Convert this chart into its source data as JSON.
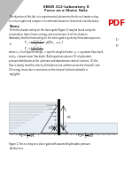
{
  "title_line1": "ENGR 312-Laboratory 8",
  "title_line2": "Force on a Sluice Gate",
  "objective_text": "The objective of this lab is to experimentally determine the force of water acting\non a sluice gate and compare it to estimates based on theoretical considerations.",
  "section_theory": "Theory",
  "theory_text1": "The force of water acting on the sluice gate (Figure 1) may be found using the\nconservation laws of mass, energy, and momentum. It will be shown in\nlaboratory that the force acting on the sluice gate is given by these two equations:",
  "eq1_left": "F",
  "eq1": "  =   γ(y₁² - y₂²)          + ρQ(v₁ - v₂)",
  "eq1_mid": "          2",
  "eq1_label": "(1)",
  "eq2": "  =   γ(y₁² - y₂²)",
  "eq2_denom": "     2(y₁ + y₂)",
  "eq2_label": "(2)",
  "theory_text2": "where γ = fluid specific weight, = specific weight of water, y₁ = upstream flow depth,\nand y₂ = downstream flow depth. Both equations assume (1) a hydrostatic\npressure distribution at the upstream and downstream channel sections, (2) the\nflow is steady (and the velocity distributions are uniform across the channel), and\n(3) energy losses due to resistance on the channel bed and sidewalls is\nnegligible.",
  "fig_caption": "Figure 1. Force acting on a sluice gate with assumed hydrostatic pressure\ndistributions.",
  "bg_color": "#ffffff",
  "text_color": "#111111",
  "title_color": "#222222",
  "pdf_red": "#cc0000",
  "pdf_gray": "#bbbbbb"
}
